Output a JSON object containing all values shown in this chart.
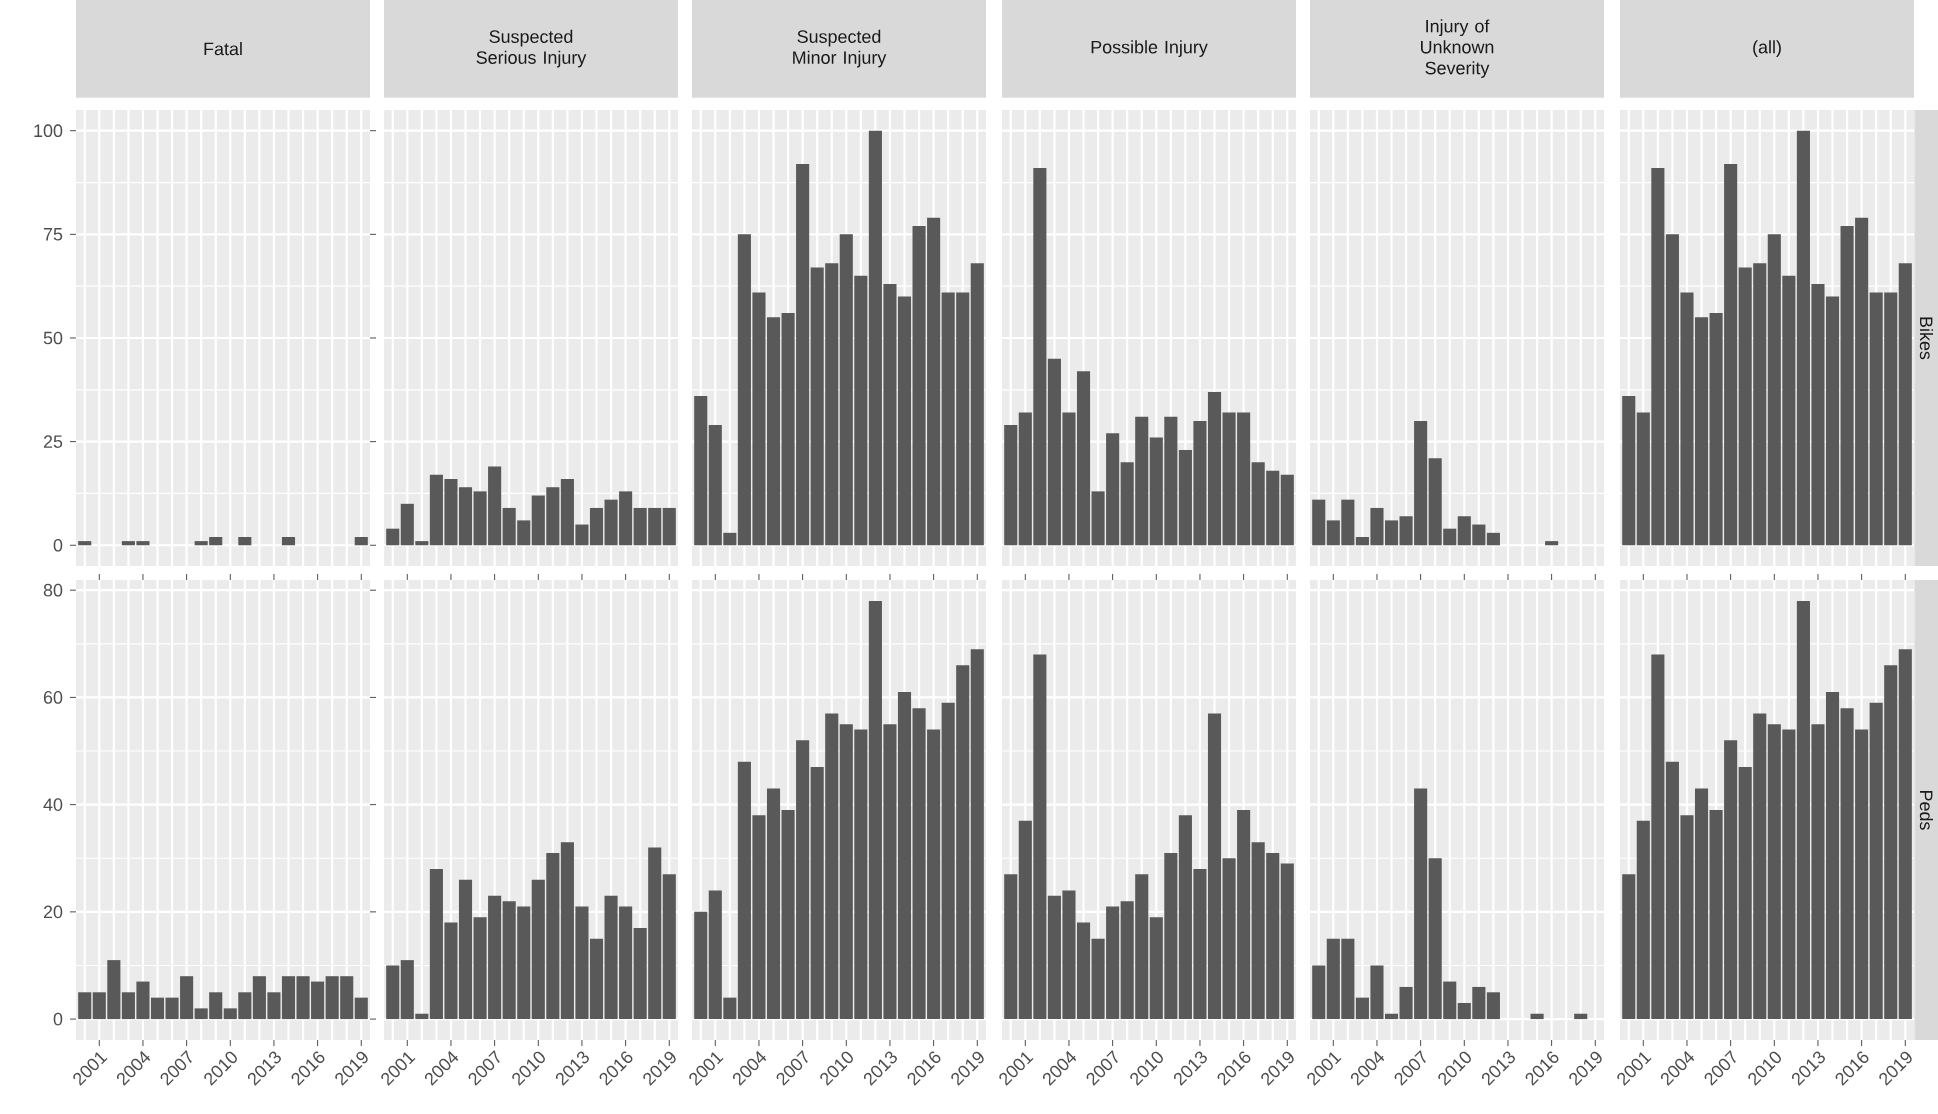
{
  "chart_data": [
    {
      "type": "bar",
      "title": "Fatal",
      "categories": [
        null,
        "2001",
        null,
        null,
        "2004",
        null,
        null,
        "2007",
        null,
        null,
        "2010",
        null,
        null,
        "2013",
        null,
        null,
        "2016",
        null,
        null,
        "2019"
      ],
      "values": [
        1,
        null,
        null,
        1,
        1,
        null,
        null,
        null,
        1,
        2,
        null,
        2,
        null,
        null,
        2,
        null,
        null,
        null,
        null,
        2
      ],
      "color": "#595959",
      "ylim": [
        -5,
        105
      ],
      "yticks": [
        0,
        25,
        50,
        75,
        100
      ],
      "grid": true,
      "tick_labels": "y"
    },
    {
      "type": "bar",
      "title": "Suspected Serious Injury",
      "categories": [
        null,
        "2001",
        null,
        null,
        "2004",
        null,
        null,
        "2007",
        null,
        null,
        "2010",
        null,
        null,
        "2013",
        null,
        null,
        "2016",
        null,
        null,
        "2019"
      ],
      "values": [
        4,
        10,
        1,
        17,
        16,
        14,
        13,
        19,
        9,
        6,
        12,
        14,
        16,
        5,
        9,
        11,
        13,
        9,
        9,
        9
      ],
      "color": "#595959",
      "ylim": [
        -5,
        105
      ],
      "yticks": [
        0,
        25,
        50,
        75,
        100
      ],
      "grid": true,
      "tick_labels": false
    },
    {
      "type": "bar",
      "title": "Suspected Minor Injury",
      "categories": [
        null,
        "2001",
        null,
        null,
        "2004",
        null,
        null,
        "2007",
        null,
        null,
        "2010",
        null,
        null,
        "2013",
        null,
        null,
        "2016",
        null,
        null,
        "2019"
      ],
      "values": [
        36,
        29,
        3,
        75,
        61,
        55,
        56,
        92,
        67,
        68,
        75,
        65,
        100,
        63,
        60,
        77,
        79,
        61,
        61,
        68
      ],
      "color": "#595959",
      "ylim": [
        -5,
        105
      ],
      "yticks": [
        0,
        25,
        50,
        75,
        100
      ],
      "grid": true,
      "tick_labels": false
    },
    {
      "type": "bar",
      "title": "Possible Injury",
      "categories": [
        null,
        "2001",
        null,
        null,
        "2004",
        null,
        null,
        "2007",
        null,
        null,
        "2010",
        null,
        null,
        "2013",
        null,
        null,
        "2016",
        null,
        null,
        "2019"
      ],
      "values": [
        29,
        32,
        91,
        45,
        32,
        42,
        13,
        27,
        20,
        31,
        26,
        31,
        23,
        30,
        37,
        32,
        32,
        20,
        18,
        17
      ],
      "color": "#595959",
      "ylim": [
        -5,
        105
      ],
      "yticks": [
        0,
        25,
        50,
        75,
        100
      ],
      "grid": true,
      "tick_labels": false
    },
    {
      "type": "bar",
      "title": "Injury of Unknown Severity",
      "categories": [
        null,
        "2001",
        null,
        null,
        "2004",
        null,
        null,
        "2007",
        null,
        null,
        "2010",
        null,
        null,
        "2013",
        null,
        null,
        "2016",
        null,
        null,
        "2019"
      ],
      "values": [
        11,
        6,
        11,
        2,
        9,
        6,
        7,
        30,
        21,
        4,
        7,
        5,
        3,
        null,
        null,
        null,
        1,
        null,
        null,
        null
      ],
      "color": "#595959",
      "ylim": [
        -5,
        105
      ],
      "yticks": [
        0,
        25,
        50,
        75,
        100
      ],
      "grid": true,
      "tick_labels": false
    },
    {
      "type": "bar",
      "title": "(all)",
      "annotations": [
        "Bikes"
      ],
      "categories": [
        null,
        "2001",
        null,
        null,
        "2004",
        null,
        null,
        "2007",
        null,
        null,
        "2010",
        null,
        null,
        "2013",
        null,
        null,
        "2016",
        null,
        null,
        "2019"
      ],
      "values": [
        36,
        32,
        91,
        75,
        61,
        55,
        56,
        92,
        67,
        68,
        75,
        65,
        100,
        63,
        60,
        77,
        79,
        61,
        61,
        68
      ],
      "color": "#595959",
      "ylim": [
        -5,
        105
      ],
      "yticks": [
        0,
        25,
        50,
        75,
        100
      ],
      "grid": true,
      "tick_labels": false
    },
    {
      "type": "bar",
      "categories": [
        null,
        "2001",
        null,
        null,
        "2004",
        null,
        null,
        "2007",
        null,
        null,
        "2010",
        null,
        null,
        "2013",
        null,
        null,
        "2016",
        null,
        null,
        "2019"
      ],
      "values": [
        5,
        5,
        11,
        5,
        7,
        4,
        4,
        8,
        2,
        5,
        2,
        5,
        8,
        5,
        8,
        8,
        7,
        8,
        8,
        4
      ],
      "color": "#595959",
      "ylim": [
        -3.9,
        81.9
      ],
      "yticks": [
        0,
        20,
        40,
        60,
        80
      ],
      "grid": true
    },
    {
      "type": "bar",
      "categories": [
        null,
        "2001",
        null,
        null,
        "2004",
        null,
        null,
        "2007",
        null,
        null,
        "2010",
        null,
        null,
        "2013",
        null,
        null,
        "2016",
        null,
        null,
        "2019"
      ],
      "values": [
        10,
        11,
        1,
        28,
        18,
        26,
        19,
        23,
        22,
        21,
        26,
        31,
        33,
        21,
        15,
        23,
        21,
        17,
        32,
        27
      ],
      "color": "#595959",
      "ylim": [
        -3.9,
        81.9
      ],
      "yticks": [
        0,
        20,
        40,
        60,
        80
      ],
      "grid": true,
      "tick_labels": "x"
    },
    {
      "type": "bar",
      "categories": [
        null,
        "2001",
        null,
        null,
        "2004",
        null,
        null,
        "2007",
        null,
        null,
        "2010",
        null,
        null,
        "2013",
        null,
        null,
        "2016",
        null,
        null,
        "2019"
      ],
      "values": [
        20,
        24,
        4,
        48,
        38,
        43,
        39,
        52,
        47,
        57,
        55,
        54,
        78,
        55,
        61,
        58,
        54,
        59,
        66,
        69
      ],
      "color": "#595959",
      "ylim": [
        -3.9,
        81.9
      ],
      "yticks": [
        0,
        20,
        40,
        60,
        80
      ],
      "grid": true,
      "tick_labels": "x"
    },
    {
      "type": "bar",
      "categories": [
        null,
        "2001",
        null,
        null,
        "2004",
        null,
        null,
        "2007",
        null,
        null,
        "2010",
        null,
        null,
        "2013",
        null,
        null,
        "2016",
        null,
        null,
        "2019"
      ],
      "values": [
        27,
        37,
        68,
        23,
        24,
        18,
        15,
        21,
        22,
        27,
        19,
        31,
        38,
        28,
        57,
        30,
        39,
        33,
        31,
        29
      ],
      "color": "#595959",
      "ylim": [
        -3.9,
        81.9
      ],
      "yticks": [
        0,
        20,
        40,
        60,
        80
      ],
      "grid": true,
      "tick_labels": "x"
    },
    {
      "type": "bar",
      "categories": [
        null,
        "2001",
        null,
        null,
        "2004",
        null,
        null,
        "2007",
        null,
        null,
        "2010",
        null,
        null,
        "2013",
        null,
        null,
        "2016",
        null,
        null,
        "2019"
      ],
      "values": [
        10,
        15,
        15,
        4,
        10,
        1,
        6,
        43,
        30,
        7,
        3,
        6,
        5,
        null,
        null,
        1,
        null,
        null,
        1,
        null
      ],
      "color": "#595959",
      "ylim": [
        -3.9,
        81.9
      ],
      "yticks": [
        0,
        20,
        40,
        60,
        80
      ],
      "grid": true,
      "tick_labels": "x"
    },
    {
      "type": "bar",
      "annotations": [
        "Peds"
      ],
      "categories": [
        null,
        "2001",
        null,
        null,
        "2004",
        null,
        null,
        "2007",
        null,
        null,
        "2010",
        null,
        null,
        "2013",
        null,
        null,
        "2016",
        null,
        null,
        "2019"
      ],
      "values": [
        27,
        37,
        68,
        48,
        38,
        43,
        39,
        52,
        47,
        57,
        55,
        54,
        78,
        55,
        61,
        58,
        54,
        59,
        66,
        69
      ],
      "color": "#595959",
      "ylim": [
        -3.9,
        81.9
      ],
      "yticks": [
        0,
        20,
        40,
        60,
        80
      ],
      "grid": true,
      "tick_labels": "x"
    }
  ]
}
